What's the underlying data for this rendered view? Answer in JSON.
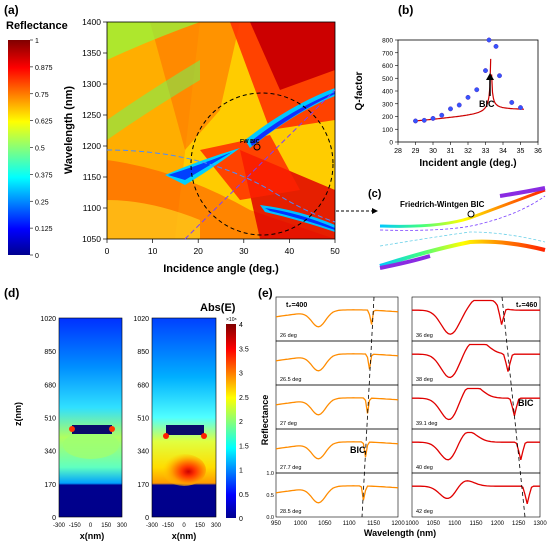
{
  "panels": {
    "a": {
      "label": "(a)",
      "colorbar_title": "Reflectance",
      "colorbar_ticks": [
        "1",
        "0.875",
        "0.75",
        "0.625",
        "0.5",
        "0.375",
        "0.25",
        "0.125",
        "0"
      ],
      "xlabel": "Incidence angle (deg.)",
      "ylabel": "Wavelength (nm)",
      "xticks": [
        "0",
        "10",
        "20",
        "30",
        "40",
        "50"
      ],
      "yticks": [
        "1400",
        "1350",
        "1300",
        "1250",
        "1200",
        "1150",
        "1100",
        "1050"
      ],
      "annotation": "FW BIC"
    },
    "b": {
      "label": "(b)",
      "xlabel": "Incident angle (deg.)",
      "ylabel": "Q-factor",
      "xticks": [
        "28",
        "29",
        "30",
        "31",
        "32",
        "33",
        "34",
        "35",
        "36"
      ],
      "yticks": [
        "0",
        "100",
        "200",
        "300",
        "400",
        "500",
        "600",
        "700",
        "800"
      ],
      "annotation": "BIC"
    },
    "c": {
      "label": "(c)",
      "annotation": "Friedrich-Wintgen BIC"
    },
    "d": {
      "label": "(d)",
      "colorbar_title": "Abs(E)",
      "colorbar_exponent": "×10⁸",
      "colorbar_ticks": [
        "4",
        "3.5",
        "3",
        "2.5",
        "2",
        "1.5",
        "1",
        "0.5",
        "0"
      ],
      "ylabel": "z(nm)",
      "xlabel": "x(nm)",
      "yticks": [
        "1020",
        "850",
        "680",
        "510",
        "340",
        "170",
        "0"
      ],
      "xticks": [
        "-300",
        "-150",
        "0",
        "150",
        "300"
      ]
    },
    "e": {
      "label": "(e)",
      "ylabel": "Reflectance",
      "xlabel": "Wavelength (nm)",
      "left_header": "t₂=400",
      "right_header": "t₂=460",
      "left_xticks": [
        "950",
        "1000",
        "1050",
        "1100",
        "1150",
        "1200"
      ],
      "right_xticks": [
        "1150",
        "1200",
        "1250",
        "1300"
      ],
      "right_xticks_full": [
        "1000",
        "1050",
        "1100",
        "1150",
        "1200",
        "1250",
        "1300"
      ],
      "yticks": [
        "0.0",
        "0.5",
        "1.0"
      ],
      "left_angles": [
        "26 deg",
        "26.5 deg",
        "27 deg",
        "27.7 deg",
        "28.5 deg"
      ],
      "right_angles": [
        "36 deg",
        "38 deg",
        "39.1 deg",
        "40 deg",
        "42 deg"
      ],
      "bic_left": "BIC",
      "bic_right": "BIC"
    }
  },
  "chart_data": [
    {
      "type": "scatter",
      "panel": "b",
      "xlabel": "Incident angle (deg.)",
      "ylabel": "Q-factor",
      "xlim": [
        28,
        36
      ],
      "ylim": [
        0,
        800
      ],
      "x": [
        29,
        29.5,
        30,
        30.5,
        31,
        31.5,
        32,
        32.5,
        33,
        33.2,
        33.6,
        33.8,
        34.5,
        35
      ],
      "y": [
        165,
        170,
        185,
        210,
        260,
        290,
        350,
        410,
        560,
        800,
        750,
        520,
        310,
        270
      ]
    }
  ]
}
